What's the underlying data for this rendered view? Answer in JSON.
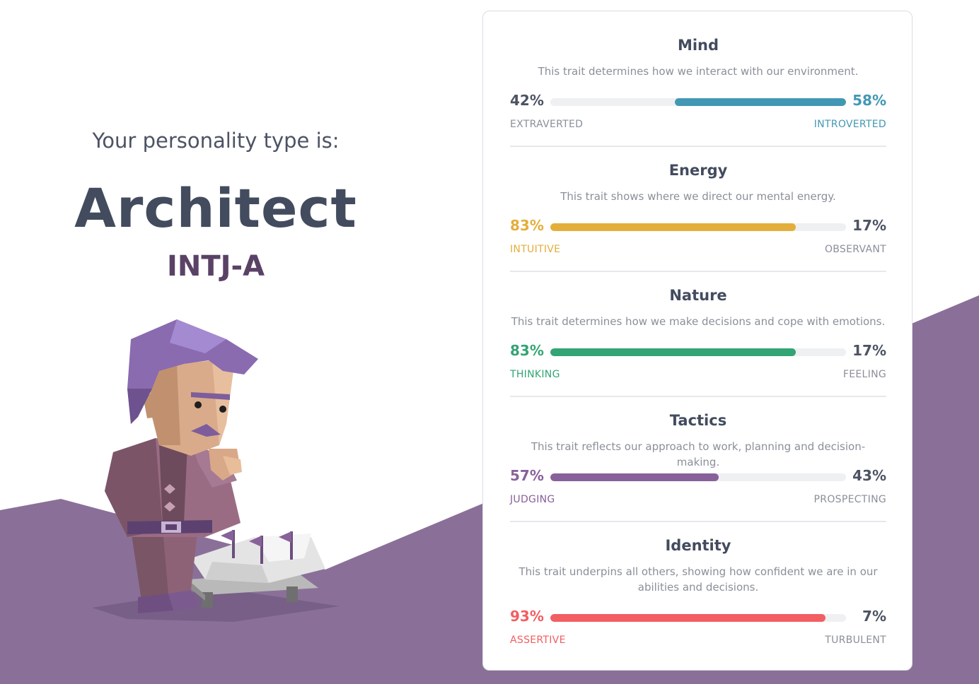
{
  "intro_text": "Your personality type is:",
  "type_name": "Architect",
  "type_code": "INTJ-A",
  "colors": {
    "background_purple": "#8a7098",
    "text_dark": "#434b5e",
    "text_muted": "#8b8f99",
    "mind": "#4298b4",
    "energy": "#e4ae3a",
    "nature": "#33a474",
    "tactics": "#88619a",
    "identity": "#f25e62"
  },
  "traits": [
    {
      "title": "Mind",
      "description": "This trait determines how we interact with our environment.",
      "left_percent": "42%",
      "right_percent": "58%",
      "left_label": "EXTRAVERTED",
      "right_label": "INTROVERTED",
      "dominant": "right",
      "dominant_fraction": 0.58,
      "color": "#4298b4"
    },
    {
      "title": "Energy",
      "description": "This trait shows where we direct our mental energy.",
      "left_percent": "83%",
      "right_percent": "17%",
      "left_label": "INTUITIVE",
      "right_label": "OBSERVANT",
      "dominant": "left",
      "dominant_fraction": 0.83,
      "color": "#e4ae3a"
    },
    {
      "title": "Nature",
      "description": "This trait determines how we make decisions and cope with emotions.",
      "left_percent": "83%",
      "right_percent": "17%",
      "left_label": "THINKING",
      "right_label": "FEELING",
      "dominant": "left",
      "dominant_fraction": 0.83,
      "color": "#33a474"
    },
    {
      "title": "Tactics",
      "description": "This trait reflects our approach to work, planning and decision-making.",
      "left_percent": "57%",
      "right_percent": "43%",
      "left_label": "JUDGING",
      "right_label": "PROSPECTING",
      "dominant": "left",
      "dominant_fraction": 0.57,
      "color": "#88619a"
    },
    {
      "title": "Identity",
      "description": "This trait underpins all others, showing how confident we are in our abilities and decisions.",
      "left_percent": "93%",
      "right_percent": "7%",
      "left_label": "ASSERTIVE",
      "right_label": "TURBULENT",
      "dominant": "left",
      "dominant_fraction": 0.93,
      "color": "#f25e62"
    }
  ]
}
